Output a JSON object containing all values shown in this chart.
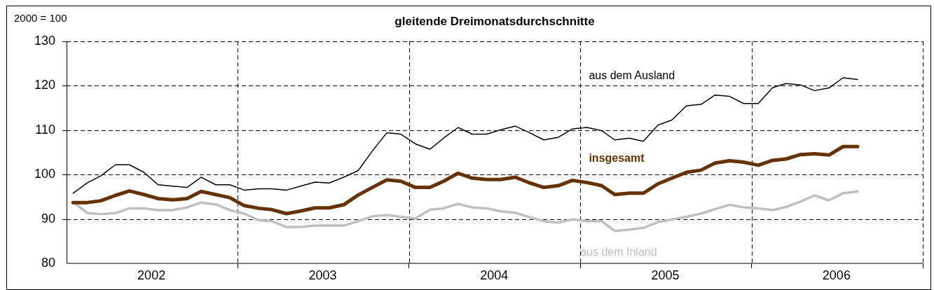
{
  "chart_data": {
    "type": "line",
    "title": "gleitende Dreimonatsdurchschnitte",
    "ylabel": "2000 = 100",
    "x": [
      "2002-01-15",
      "2002-02-15",
      "2002-03-15",
      "2002-04-15",
      "2002-05-15",
      "2002-06-15",
      "2002-07-15",
      "2002-08-15",
      "2002-09-15",
      "2002-10-15",
      "2002-11-15",
      "2002-12-15",
      "2003-01-15",
      "2003-02-15",
      "2003-03-15",
      "2003-04-15",
      "2003-05-15",
      "2003-06-15",
      "2003-07-15",
      "2003-08-15",
      "2003-09-15",
      "2003-10-15",
      "2003-11-15",
      "2003-12-15",
      "2004-01-15",
      "2004-02-15",
      "2004-03-15",
      "2004-04-15",
      "2004-05-15",
      "2004-06-15",
      "2004-07-15",
      "2004-08-15",
      "2004-09-15",
      "2004-10-15",
      "2004-11-15",
      "2004-12-15",
      "2005-01-15",
      "2005-02-15",
      "2005-03-15",
      "2005-04-15",
      "2005-05-15",
      "2005-06-15",
      "2005-07-15",
      "2005-08-15",
      "2005-09-15",
      "2005-10-15",
      "2005-11-15",
      "2005-12-15",
      "2006-01-15",
      "2006-02-15",
      "2006-03-15",
      "2006-04-15",
      "2006-05-15",
      "2006-06-15",
      "2006-07-15",
      "2006-08-15"
    ],
    "xlim": [
      "2002-01-01",
      "2007-01-01"
    ],
    "xticks": [
      {
        "value": "2002-07-01",
        "label": "2002"
      },
      {
        "value": "2003-01-01",
        "label": null
      },
      {
        "value": "2003-07-01",
        "label": "2003"
      },
      {
        "value": "2004-01-01",
        "label": null
      },
      {
        "value": "2004-07-01",
        "label": "2004"
      },
      {
        "value": "2005-01-01",
        "label": null
      },
      {
        "value": "2005-07-01",
        "label": "2005"
      },
      {
        "value": "2006-01-01",
        "label": null
      },
      {
        "value": "2006-07-01",
        "label": "2006"
      },
      {
        "value": "2007-01-01",
        "label": null
      }
    ],
    "ylim": [
      80,
      130
    ],
    "yticks": [
      80,
      90,
      100,
      110,
      120,
      130
    ],
    "grid": true,
    "marker": "none",
    "line_style": "solid",
    "series": [
      {
        "name": "aus dem Ausland",
        "color": "#000000",
        "values": [
          95.8,
          98.2,
          99.7,
          102.2,
          102.2,
          100.5,
          97.7,
          97.4,
          97.1,
          99.4,
          97.7,
          97.7,
          96.5,
          96.8,
          96.8,
          96.5,
          97.4,
          98.3,
          98.1,
          99.4,
          100.9,
          105.3,
          109.4,
          109.1,
          106.9,
          105.7,
          108.2,
          110.6,
          109.1,
          109.1,
          110.1,
          110.9,
          109.4,
          107.8,
          108.4,
          110.3,
          110.6,
          109.9,
          107.8,
          108.2,
          107.5,
          111.1,
          112.3,
          115.5,
          115.8,
          117.9,
          117.6,
          116.0,
          116.0,
          119.6,
          120.5,
          120.2,
          118.9,
          119.5,
          121.8,
          121.4
        ]
      },
      {
        "name": "insgesamt",
        "color": "#663300",
        "values": [
          93.7,
          93.7,
          94.1,
          95.3,
          96.3,
          95.5,
          94.6,
          94.3,
          94.6,
          96.2,
          95.5,
          94.8,
          93.0,
          92.4,
          92.1,
          91.2,
          91.8,
          92.5,
          92.5,
          93.2,
          95.4,
          97.1,
          98.8,
          98.5,
          97.1,
          97.1,
          98.5,
          100.3,
          99.2,
          98.9,
          98.9,
          99.4,
          98.1,
          97.1,
          97.5,
          98.7,
          98.2,
          97.5,
          95.5,
          95.8,
          95.8,
          97.9,
          99.2,
          100.5,
          101.0,
          102.6,
          103.1,
          102.8,
          102.1,
          103.2,
          103.5,
          104.5,
          104.7,
          104.4,
          106.3,
          106.3
        ]
      },
      {
        "name": "aus dem Inland",
        "color": "#c0c0c0",
        "values": [
          93.8,
          91.3,
          91.1,
          91.3,
          92.4,
          92.4,
          92.0,
          92.0,
          92.6,
          93.7,
          93.3,
          92.0,
          91.2,
          89.7,
          89.5,
          88.2,
          88.2,
          88.5,
          88.5,
          88.5,
          89.5,
          90.6,
          90.9,
          90.5,
          90.1,
          92.1,
          92.4,
          93.4,
          92.6,
          92.4,
          91.7,
          91.4,
          90.4,
          89.5,
          89.2,
          89.9,
          89.5,
          89.5,
          87.3,
          87.6,
          88.0,
          89.3,
          89.9,
          90.5,
          91.2,
          92.2,
          93.2,
          92.6,
          92.4,
          92.0,
          92.7,
          93.9,
          95.3,
          94.2,
          95.8,
          96.2
        ]
      }
    ]
  }
}
